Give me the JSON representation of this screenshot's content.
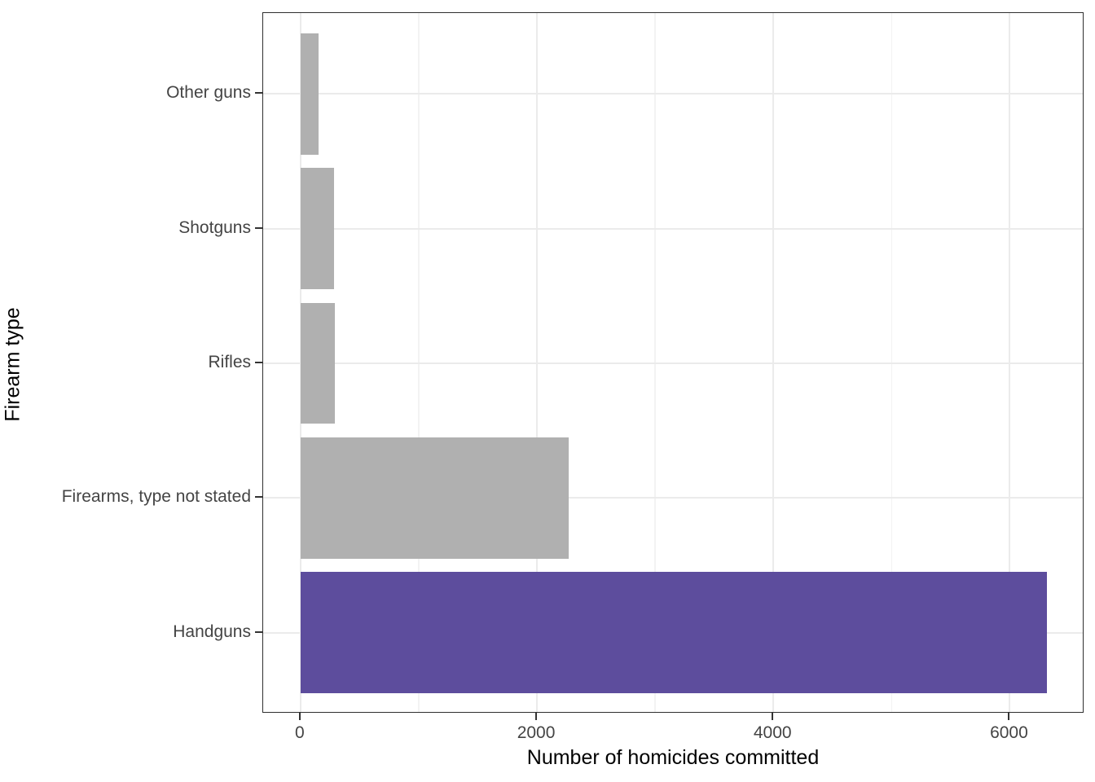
{
  "chart_data": {
    "type": "bar",
    "orientation": "horizontal",
    "title": "",
    "xlabel": "Number of homicides committed",
    "ylabel": "Firearm type",
    "categories": [
      "Other guns",
      "Shotguns",
      "Rifles",
      "Firearms, type not stated",
      "Handguns"
    ],
    "values": [
      150,
      285,
      290,
      2270,
      6315
    ],
    "highlight_category": "Handguns",
    "highlight_color": "#5d4d9d",
    "default_bar_color": "#b0b0b0",
    "x_ticks": [
      0,
      2000,
      4000,
      6000
    ],
    "x_tick_labels": [
      "0",
      "2000",
      "4000",
      "6000"
    ],
    "x_minor_gridlines": [
      1000,
      3000,
      5000
    ],
    "xlim": [
      -316,
      6631
    ],
    "grid": true,
    "legend": false
  },
  "colors": {
    "panel_border": "#2f2f2f",
    "gridline_major": "#ebebeb",
    "gridline_minor": "#f3f3f3",
    "axis_text": "#444444",
    "axis_title": "#000000",
    "background": "#ffffff"
  }
}
